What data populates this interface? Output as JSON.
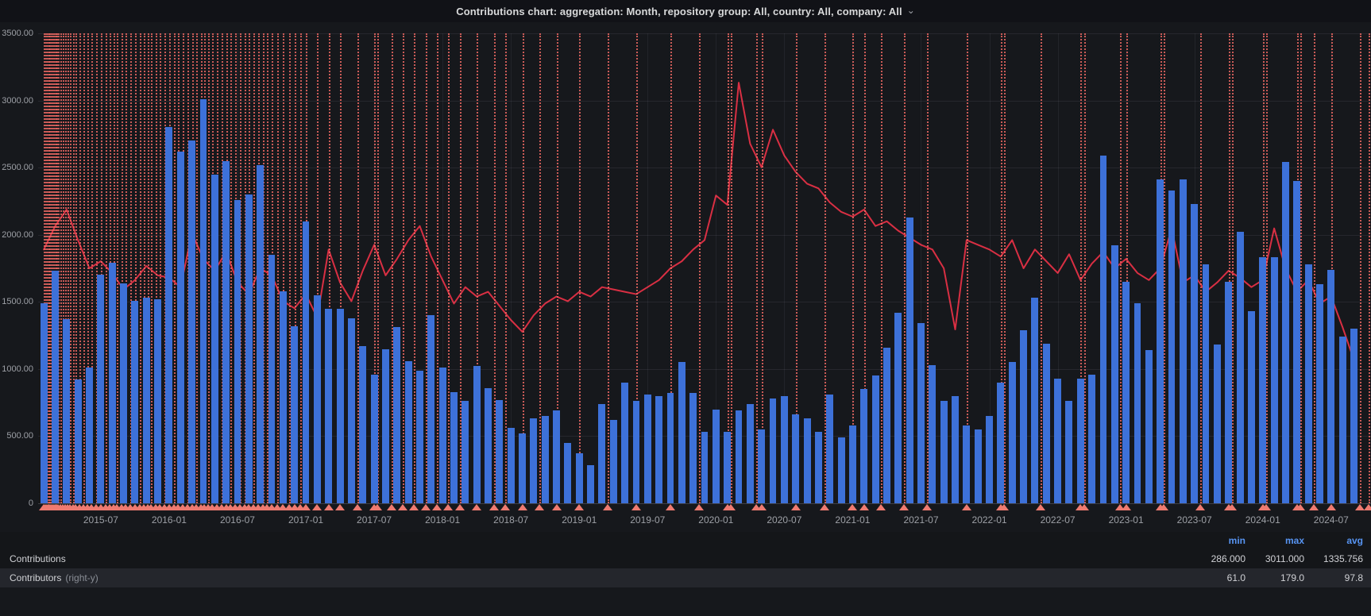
{
  "title": {
    "text": "Contributions chart: aggregation: Month, repository group: All, country: All, company: All",
    "chevron": "⌄"
  },
  "colors": {
    "page_bg": "#111217",
    "panel_bg": "#16181c",
    "bar": "#3d71d9",
    "line": "#d92f43",
    "annotation_line": "#f26a64",
    "annotation_marker": "#ee7a70",
    "grid": "#2a2c31",
    "axis_text": "#9da0a6",
    "legend_header": "#5794f2",
    "legend_row_highlight": "#24262c"
  },
  "y_axis": {
    "labels": [
      "3500.00",
      "3000.00",
      "2500.00",
      "2000.00",
      "1500.00",
      "1000.00",
      "500.00",
      "0"
    ],
    "max": 3500,
    "step": 500
  },
  "right_y_axis": {
    "max": 200
  },
  "chart_data": {
    "type": "bar+line",
    "start_month": "2015-02",
    "x_ticks": [
      {
        "label": "2015-07",
        "m": 5
      },
      {
        "label": "2016-01",
        "m": 11
      },
      {
        "label": "2016-07",
        "m": 17
      },
      {
        "label": "2017-01",
        "m": 23
      },
      {
        "label": "2017-07",
        "m": 29
      },
      {
        "label": "2018-01",
        "m": 35
      },
      {
        "label": "2018-07",
        "m": 41
      },
      {
        "label": "2019-01",
        "m": 47
      },
      {
        "label": "2019-07",
        "m": 53
      },
      {
        "label": "2020-01",
        "m": 59
      },
      {
        "label": "2020-07",
        "m": 65
      },
      {
        "label": "2021-01",
        "m": 71
      },
      {
        "label": "2021-07",
        "m": 77
      },
      {
        "label": "2022-01",
        "m": 83
      },
      {
        "label": "2022-07",
        "m": 89
      },
      {
        "label": "2023-01",
        "m": 95
      },
      {
        "label": "2023-07",
        "m": 101
      },
      {
        "label": "2024-01",
        "m": 107
      },
      {
        "label": "2024-07",
        "m": 113
      }
    ],
    "series": [
      {
        "name": "Contributions",
        "type": "bar",
        "axis": "left",
        "values": [
          1490,
          1730,
          1370,
          920,
          1010,
          1700,
          1790,
          1640,
          1510,
          1530,
          1520,
          2800,
          2620,
          2700,
          3011,
          2450,
          2550,
          2260,
          2300,
          2520,
          1850,
          1580,
          1320,
          2100,
          1550,
          1450,
          1450,
          1380,
          1170,
          960,
          1150,
          1310,
          1060,
          990,
          1400,
          1010,
          830,
          760,
          1020,
          860,
          770,
          560,
          520,
          630,
          650,
          690,
          450,
          370,
          286,
          740,
          620,
          900,
          760,
          810,
          800,
          820,
          1050,
          820,
          530,
          700,
          530,
          690,
          740,
          550,
          780,
          800,
          660,
          630,
          530,
          810,
          490,
          580,
          850,
          950,
          1160,
          1420,
          2130,
          1340,
          1030,
          760,
          800,
          580,
          550,
          650,
          900,
          1050,
          1290,
          1530,
          1190,
          930,
          760,
          930,
          960,
          2590,
          1920,
          1650,
          1490,
          1140,
          2410,
          2330,
          2410,
          2230,
          1780,
          1180,
          1650,
          2020,
          1430,
          1830,
          1830,
          2540,
          2400,
          1780,
          1630,
          1740,
          1240,
          1300
        ]
      },
      {
        "name": "Contributors",
        "type": "line",
        "axis": "right",
        "values": [
          108,
          118,
          125,
          112,
          100,
          103,
          98,
          91,
          95,
          101,
          97,
          96,
          92,
          115,
          104,
          99,
          107,
          94,
          89,
          100,
          97,
          86,
          83,
          89,
          79,
          108,
          94,
          86,
          99,
          110,
          97,
          104,
          112,
          118,
          105,
          95,
          85,
          92,
          88,
          90,
          84,
          78,
          73,
          80,
          85,
          88,
          86,
          90,
          88,
          92,
          91,
          90,
          89,
          92,
          95,
          100,
          103,
          108,
          112,
          131,
          127,
          179,
          153,
          143,
          159,
          148,
          141,
          136,
          134,
          128,
          124,
          122,
          125,
          118,
          120,
          116,
          113,
          110,
          108,
          100,
          74,
          112,
          110,
          108,
          105,
          112,
          100,
          108,
          103,
          98,
          106,
          95,
          102,
          107,
          100,
          104,
          98,
          95,
          100,
          117,
          94,
          97,
          90,
          94,
          99,
          96,
          92,
          95,
          117,
          100,
          90,
          95,
          85,
          88,
          75,
          61
        ]
      }
    ],
    "annotations_month_units": [
      0,
      0.12,
      0.25,
      0.38,
      0.5,
      0.62,
      0.75,
      0.88,
      1,
      1.12,
      1.25,
      1.45,
      1.65,
      1.85,
      2.05,
      2.3,
      2.55,
      2.8,
      3.1,
      3.45,
      3.8,
      4.2,
      4.6,
      5,
      5.4,
      5.8,
      6.1,
      6.4,
      6.8,
      7.2,
      7.6,
      8,
      8.4,
      8.8,
      9.1,
      9.4,
      9.8,
      10.2,
      10.6,
      11,
      11.4,
      11.8,
      12.2,
      12.6,
      13,
      13.4,
      13.8,
      14.1,
      14.4,
      14.8,
      15.2,
      15.6,
      16,
      16.4,
      16.8,
      17.2,
      17.6,
      18,
      18.4,
      18.8,
      19.2,
      19.6,
      20,
      20.5,
      21,
      21.5,
      22,
      22.5,
      23,
      24,
      25,
      26,
      27.5,
      29,
      29.25,
      30.5,
      31.5,
      32.5,
      33.5,
      34.5,
      35.5,
      36.5,
      38,
      39.5,
      40.5,
      42,
      43.5,
      45,
      47,
      49.5,
      52,
      55,
      57.5,
      60,
      60.3,
      62.5,
      63,
      66,
      68.5,
      71,
      72,
      73.5,
      75.5,
      77.5,
      81,
      84,
      84.3,
      87.5,
      91,
      91.3,
      94.5,
      95,
      98,
      98.3,
      101.5,
      104,
      104.3,
      107,
      107.3,
      110,
      110.3,
      111.5,
      113,
      115.5,
      116.3
    ]
  },
  "legend": {
    "headers": [
      "min",
      "max",
      "avg"
    ],
    "rows": [
      {
        "label": "Contributions",
        "suffix": "",
        "min": "286.000",
        "max": "3011.000",
        "avg": "1335.756",
        "highlighted": false
      },
      {
        "label": "Contributors",
        "suffix": "(right-y)",
        "min": "61.0",
        "max": "179.0",
        "avg": "97.8",
        "highlighted": true
      }
    ]
  }
}
